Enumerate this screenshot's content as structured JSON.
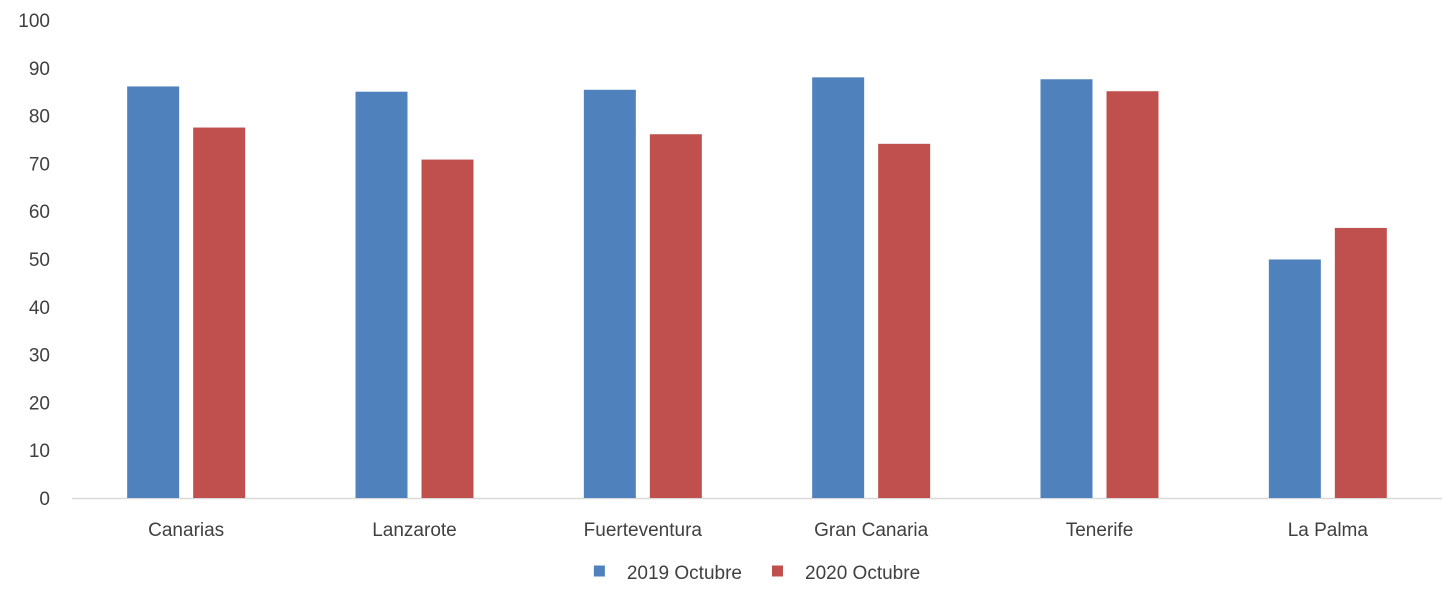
{
  "chart_data": {
    "type": "bar",
    "categories": [
      "Canarias",
      "Lanzarote",
      "Fuerteventura",
      "Gran Canaria",
      "Tenerife",
      "La Palma"
    ],
    "series": [
      {
        "name": "2019 Octubre",
        "color": "#4f81bd",
        "values": [
          86.1,
          85.0,
          85.4,
          88.0,
          87.6,
          49.9
        ]
      },
      {
        "name": "2020 Octubre",
        "color": "#c0504d",
        "values": [
          77.5,
          70.8,
          76.1,
          74.1,
          85.1,
          56.5
        ]
      }
    ],
    "yticks": [
      "0",
      "10",
      "20",
      "30",
      "40",
      "50",
      "60",
      "70",
      "80",
      "90",
      "100"
    ],
    "ylim": [
      0,
      100
    ],
    "title": "",
    "xlabel": "",
    "ylabel": "",
    "grid": false,
    "legend_position": "bottom-center"
  }
}
